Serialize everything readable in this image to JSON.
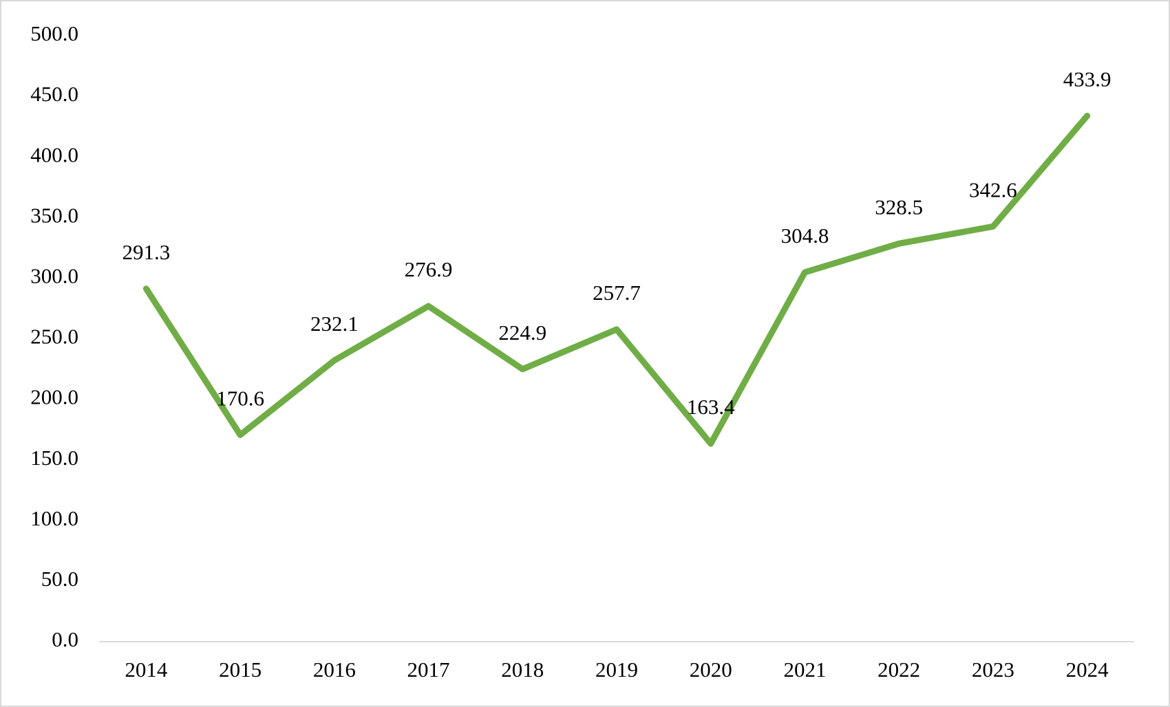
{
  "chart_data": {
    "type": "line",
    "categories": [
      "2014",
      "2015",
      "2016",
      "2017",
      "2018",
      "2019",
      "2020",
      "2021",
      "2022",
      "2023",
      "2024"
    ],
    "series": [
      {
        "color": "#70ad47",
        "values": [
          291.3,
          170.6,
          232.1,
          276.9,
          224.9,
          257.7,
          163.4,
          304.8,
          328.5,
          342.6,
          433.9
        ]
      }
    ],
    "ylim": [
      0,
      500
    ],
    "yticks": [
      {
        "value": 0,
        "label": "0.0"
      },
      {
        "value": 50,
        "label": "50.0"
      },
      {
        "value": 100,
        "label": "100.0"
      },
      {
        "value": 150,
        "label": "150.0"
      },
      {
        "value": 200,
        "label": "200.0"
      },
      {
        "value": 250,
        "label": "250.0"
      },
      {
        "value": 300,
        "label": "300.0"
      },
      {
        "value": 350,
        "label": "350.0"
      },
      {
        "value": 400,
        "label": "400.0"
      },
      {
        "value": 450,
        "label": "450.0"
      },
      {
        "value": 500,
        "label": "500.0"
      }
    ],
    "grid": false,
    "data_labels": true
  }
}
